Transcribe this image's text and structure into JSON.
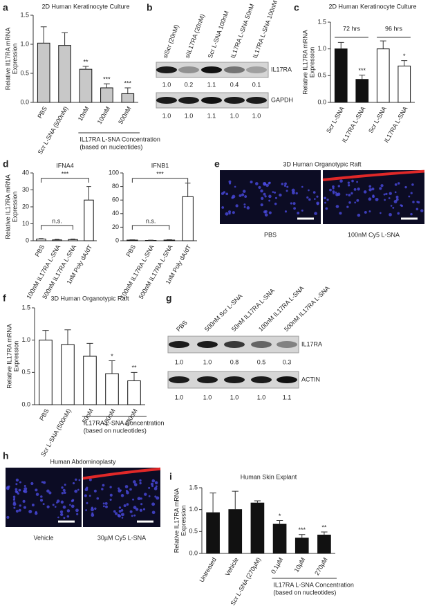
{
  "chart_data": [
    {
      "type": "bar",
      "label": "a",
      "title": "2D Human Keratinocyte Culture",
      "ylabel": [
        "Relative Il17RA mRNA",
        "Expression"
      ],
      "categories": [
        "PBS",
        "Scr L-SNA (500nM)",
        "10nM",
        "100nM",
        "500nM"
      ],
      "values": [
        1.02,
        0.98,
        0.57,
        0.25,
        0.15
      ],
      "errors": [
        0.28,
        0.22,
        0.05,
        0.07,
        0.1
      ],
      "significance": [
        null,
        null,
        "**",
        "***",
        "***"
      ],
      "color": "#c8c8c8",
      "group_label": [
        "IL17RA L-SNA Concentration",
        "(based on nucleotides)"
      ],
      "ylim": [
        0,
        1.5
      ],
      "yticks": [
        {
          "value": 0,
          "label": "0.0"
        },
        {
          "value": 0.5,
          "label": "0.5"
        },
        {
          "value": 1,
          "label": "1.0"
        },
        {
          "value": 1.5,
          "label": "1.5"
        }
      ]
    },
    {
      "type": "bar",
      "label": "c",
      "title": "2D Human Keratinocyte Culture",
      "ylabel": [
        "Relative IL17RA mRNA",
        "Expression"
      ],
      "categories": [
        "Scr L-SNA",
        "IL17RA L-SNA",
        "Scr L-SNA",
        "IL17RA L-SNA"
      ],
      "values": [
        1.0,
        0.43,
        1.0,
        0.68
      ],
      "errors": [
        0.12,
        0.08,
        0.15,
        0.1
      ],
      "significance": [
        null,
        "***",
        null,
        "*"
      ],
      "colors": [
        "#111111",
        "#111111",
        "#ffffff",
        "#ffffff"
      ],
      "groups": [
        "72 hrs",
        "96 hrs"
      ],
      "ylim": [
        0,
        1.5
      ],
      "yticks": [
        {
          "value": 0,
          "label": "0.0"
        },
        {
          "value": 0.5,
          "label": "0.5"
        },
        {
          "value": 1,
          "label": "1.0"
        },
        {
          "value": 1.5,
          "label": "1.5"
        }
      ]
    },
    {
      "type": "bar",
      "label": "d",
      "title": "IFNA4",
      "ylabel": [
        "Relative IL17RA mRNA",
        "Expression"
      ],
      "categories": [
        "PBS",
        "100nM IL17RA L-SNA",
        "500nM IL17RA L-SNA",
        "1nM Poly dA/dT"
      ],
      "values": [
        1,
        0.5,
        0.7,
        24
      ],
      "errors": [
        0.3,
        0.3,
        0.3,
        8
      ],
      "color": "#ffffff",
      "annotations": [
        "***",
        "n.s."
      ],
      "ylim": [
        0,
        40
      ],
      "yticks": [
        0,
        10,
        20,
        30,
        40
      ]
    },
    {
      "type": "bar",
      "title": "IFNB1",
      "categories": [
        "PBS",
        "100nM IL17RA L-SNA",
        "500nM IL17RA L-SNA",
        "1nM Poly dA/dT"
      ],
      "values": [
        1,
        0.5,
        1,
        65
      ],
      "errors": [
        0.4,
        0.4,
        0.5,
        20
      ],
      "color": "#ffffff",
      "annotations": [
        "***",
        "n.s."
      ],
      "ylim": [
        0,
        100
      ],
      "yticks": [
        0,
        20,
        40,
        60,
        80,
        100
      ]
    },
    {
      "type": "bar",
      "label": "f",
      "title": "3D Human Organotypic Raft",
      "ylabel": [
        "Relative IL17RA mRNA",
        "Expression"
      ],
      "categories": [
        "PBS",
        "Scr L-SNA (500nM)",
        "50nM",
        "100nM",
        "500nM"
      ],
      "values": [
        1.0,
        0.93,
        0.75,
        0.48,
        0.37
      ],
      "errors": [
        0.15,
        0.23,
        0.2,
        0.2,
        0.13
      ],
      "significance": [
        null,
        null,
        null,
        "*",
        "**"
      ],
      "color": "#ffffff",
      "group_label": [
        "IL17RA L-SNA Concentration",
        "(based on nucleotides)"
      ],
      "ylim": [
        0,
        1.5
      ],
      "yticks": [
        {
          "value": 0,
          "label": "0.0"
        },
        {
          "value": 0.5,
          "label": "0.5"
        },
        {
          "value": 1,
          "label": "1.0"
        },
        {
          "value": 1.5,
          "label": "1.5"
        }
      ]
    },
    {
      "type": "bar",
      "label": "i",
      "title": "Human Skin Explant",
      "ylabel": [
        "Relative IL17RA mRNA",
        "Expression"
      ],
      "categories": [
        "Untreated",
        "Vehicle",
        "Scr L-SNA (270µM)",
        "0.1µM",
        "10µM",
        "270µM"
      ],
      "values": [
        0.93,
        1.0,
        1.15,
        0.67,
        0.35,
        0.42
      ],
      "errors": [
        0.45,
        0.42,
        0.05,
        0.08,
        0.08,
        0.07
      ],
      "significance": [
        null,
        null,
        null,
        "*",
        "***",
        "**"
      ],
      "color": "#111111",
      "group_label": [
        "IL17RA L-SNA Concentration",
        "(based on nucleotides)"
      ],
      "ylim": [
        0,
        1.5
      ],
      "yticks": [
        {
          "value": 0,
          "label": "0.0"
        },
        {
          "value": 0.5,
          "label": "0.5"
        },
        {
          "value": 1,
          "label": "1.0"
        },
        {
          "value": 1.5,
          "label": "1.5"
        }
      ]
    }
  ],
  "blots": [
    {
      "label": "b",
      "lanes": [
        "siScr (20nM)",
        "siIL17RA (20nM)",
        "Scr L-SNA 100nM",
        "IL17RA L-SNA 50nM",
        "IL17RA L-SNA 100nM"
      ],
      "rows": [
        {
          "name": "IL17RA",
          "quant": [
            "1.0",
            "0.2",
            "1.1",
            "0.4",
            "0.1"
          ]
        },
        {
          "name": "GAPDH",
          "quant": [
            "1.0",
            "1.0",
            "1.1",
            "1.0",
            "1.0"
          ]
        }
      ]
    },
    {
      "label": "g",
      "lanes": [
        "PBS",
        "500nM Scr L-SNA",
        "50nM IL17RA L-SNA",
        "100nM IL17RA L-SNA",
        "500nM IL17RA L-SNA"
      ],
      "rows": [
        {
          "name": "IL17RA",
          "quant": [
            "1.0",
            "1.0",
            "0.8",
            "0.5",
            "0.3"
          ]
        },
        {
          "name": "ACTIN",
          "quant": [
            "1.0",
            "1.0",
            "1.0",
            "1.0",
            "1.1"
          ]
        }
      ]
    }
  ],
  "images": [
    {
      "label": "e",
      "title": "3D Human Organotypic Raft",
      "captions": [
        "PBS",
        "100nM Cy5 L-SNA"
      ]
    },
    {
      "label": "h",
      "title": "Human Abdominoplasty",
      "captions": [
        "Vehicle",
        "30µM Cy5 L-SNA"
      ]
    }
  ]
}
